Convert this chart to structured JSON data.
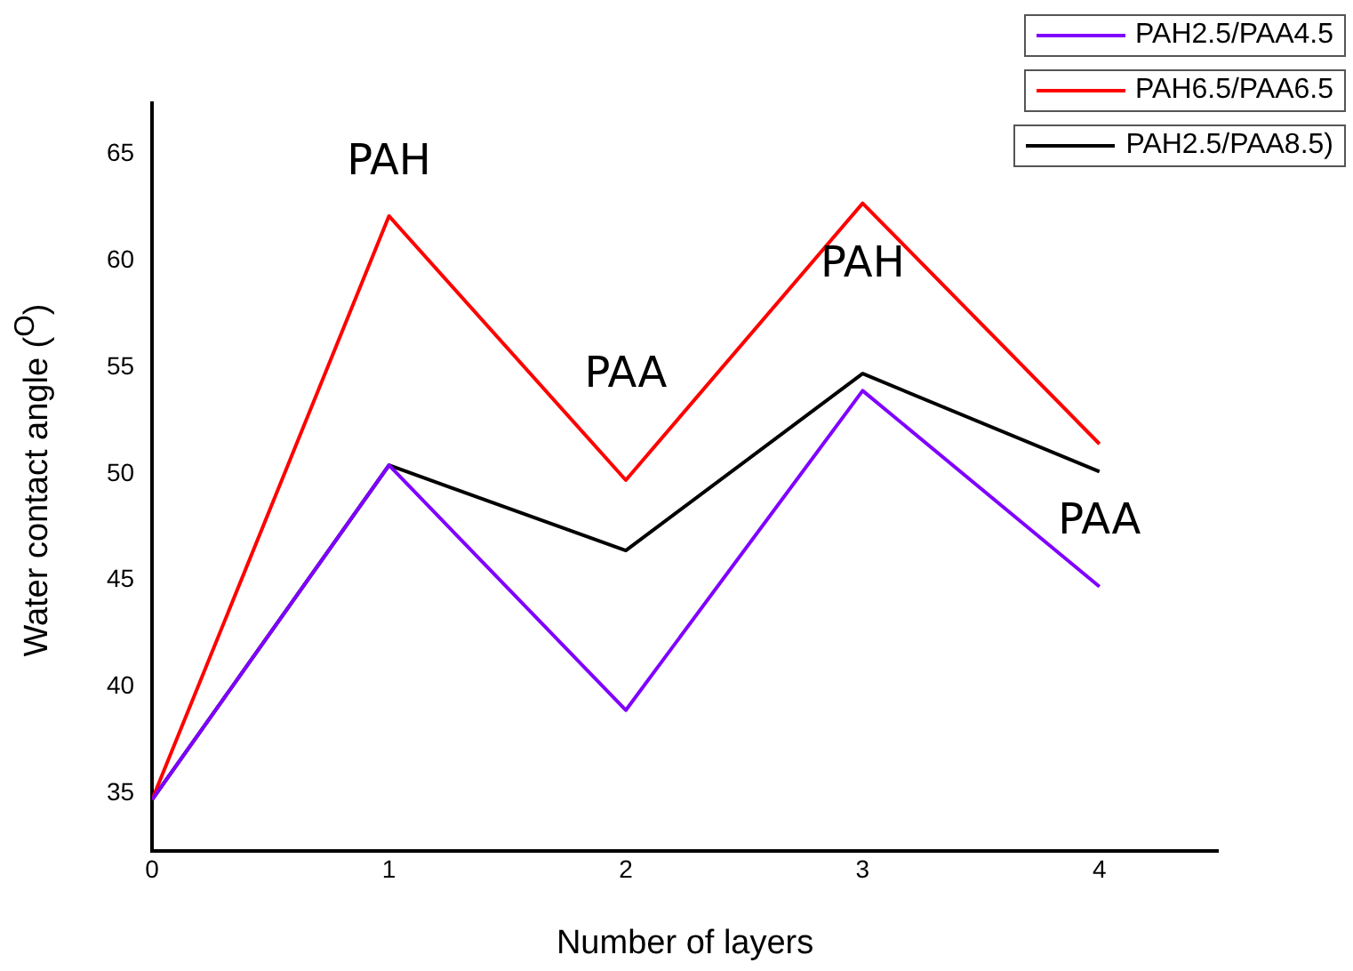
{
  "chart_data": {
    "type": "line",
    "xlabel": "Number of layers",
    "ylabel": "Water contact angle ($^{O}$)",
    "x": [
      0,
      1,
      2,
      3,
      4
    ],
    "xlim": [
      0,
      4.5
    ],
    "xticks": [
      0,
      1,
      2,
      3,
      4
    ],
    "ylim": [
      32.3,
      67.4
    ],
    "yticks": [
      35,
      40,
      45,
      50,
      55,
      60,
      65
    ],
    "series": [
      {
        "name": "PAH2.5/PAA4.5",
        "color": "#7f00ff",
        "values": [
          34.7,
          50.4,
          38.9,
          53.9,
          44.7
        ]
      },
      {
        "name": "PAH6.5/PAA6.5",
        "color": "#ff0000",
        "values": [
          34.7,
          62.1,
          49.7,
          62.7,
          51.4
        ]
      },
      {
        "name": "PAH2.5/PAA8.5)",
        "color": "#000000",
        "values": [
          34.7,
          50.4,
          46.4,
          54.7,
          50.1
        ]
      }
    ],
    "annotations": [
      "PAH",
      "PAA",
      "PAH",
      "PAA"
    ],
    "grid": false,
    "legend": "top right",
    "marker": "none",
    "line_style": "solid"
  }
}
